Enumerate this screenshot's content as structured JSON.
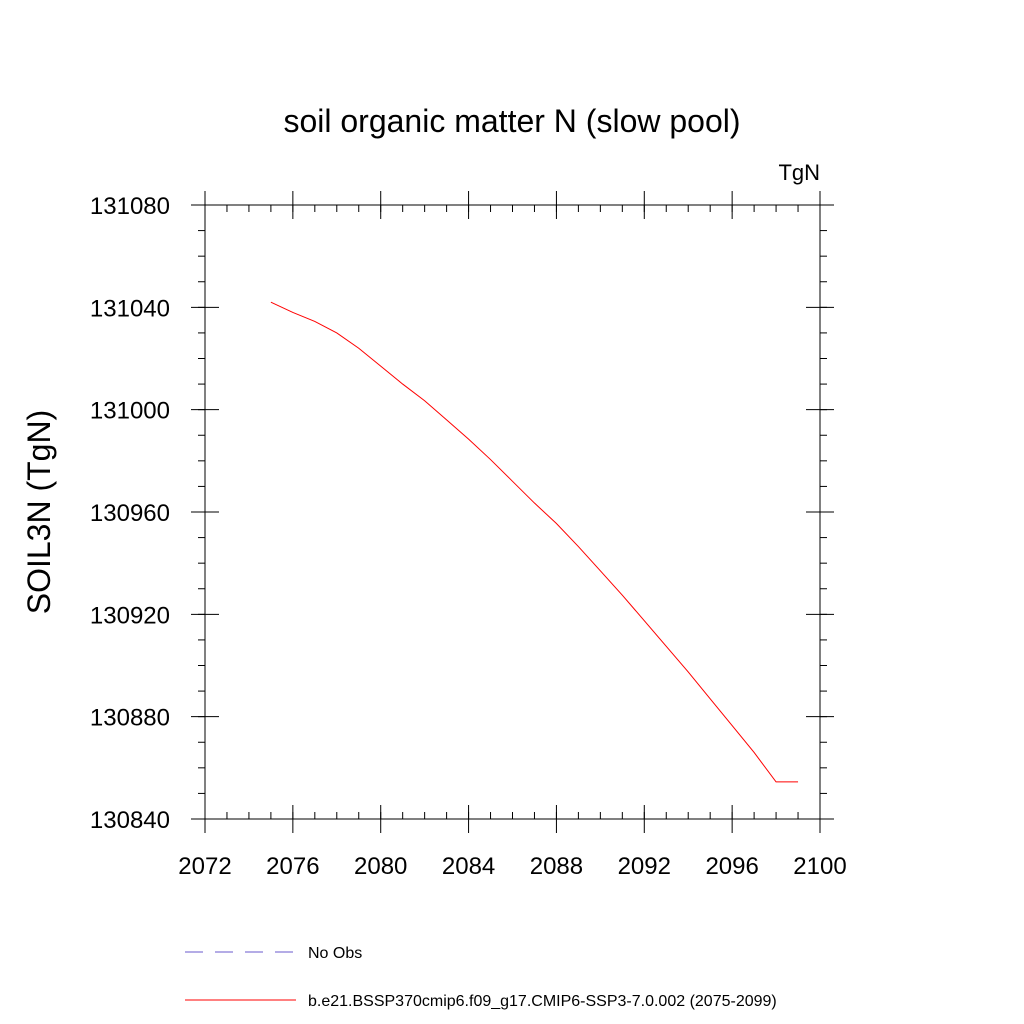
{
  "chart_data": {
    "type": "line",
    "title": "soil organic matter N (slow pool)",
    "units": "TgN",
    "ylabel": "SOIL3N  (TgN)",
    "xlabel": "",
    "xlim": [
      2072,
      2100
    ],
    "ylim": [
      130840,
      131080
    ],
    "x_ticks": [
      "2072",
      "2076",
      "2080",
      "2084",
      "2088",
      "2092",
      "2096",
      "2100"
    ],
    "y_ticks": [
      "130840",
      "130880",
      "130920",
      "130960",
      "131000",
      "131040",
      "131080"
    ],
    "x_minor_step": 1,
    "y_minor_step": 10,
    "grid": false,
    "legend_position": "bottom",
    "series": [
      {
        "name": "No Obs",
        "style": "dashed",
        "color": "#6a5acd",
        "x": [],
        "y": []
      },
      {
        "name": "b.e21.BSSP370cmip6.f09_g17.CMIP6-SSP3-7.0.002 (2075-2099)",
        "style": "solid",
        "color": "#ff0000",
        "x": [
          2075,
          2076,
          2077,
          2078,
          2079,
          2080,
          2081,
          2082,
          2083,
          2084,
          2085,
          2086,
          2087,
          2088,
          2089,
          2090,
          2091,
          2092,
          2093,
          2094,
          2095,
          2096,
          2097,
          2098,
          2099
        ],
        "y": [
          131042,
          131038,
          131034.5,
          131030,
          131024,
          131017,
          131010,
          131003.5,
          130996,
          130988.5,
          130980.5,
          130972,
          130963.5,
          130955.5,
          130946.5,
          130937,
          130927.5,
          130917.5,
          130907.5,
          130897.5,
          130887,
          130876.5,
          130866,
          130854.5,
          130854.5
        ]
      }
    ]
  }
}
